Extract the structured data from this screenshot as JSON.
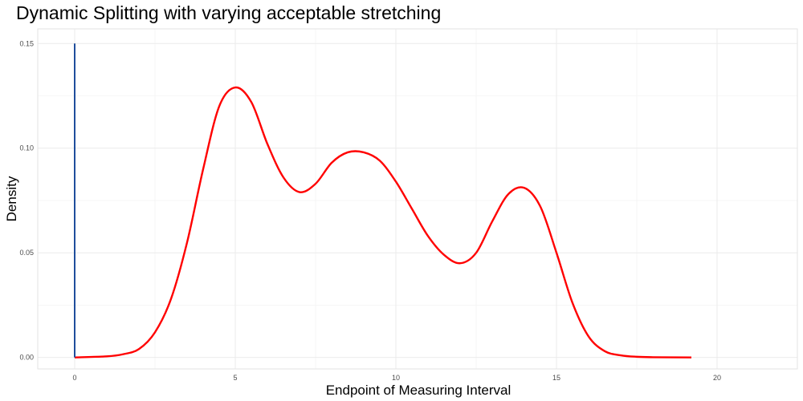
{
  "chart_data": {
    "type": "line",
    "title": "Dynamic Splitting with varying acceptable stretching",
    "xlabel": "Endpoint of Measuring Interval",
    "ylabel": "Density",
    "xlim": [
      -1.15,
      22.5
    ],
    "ylim": [
      -0.0055,
      0.157
    ],
    "x_ticks": [
      0,
      5,
      10,
      15,
      20
    ],
    "x_tick_labels": [
      "0",
      "5",
      "10",
      "15",
      "20"
    ],
    "y_ticks": [
      0.0,
      0.05,
      0.1,
      0.15
    ],
    "y_tick_labels": [
      "0.00",
      "0.05",
      "0.10",
      "0.15"
    ],
    "grid": true,
    "legend": "none",
    "series": [
      {
        "color": "#ff0000",
        "x": [
          0,
          1,
          1.5,
          2,
          2.5,
          3,
          3.5,
          4,
          4.5,
          5,
          5.5,
          6,
          6.5,
          7,
          7.5,
          8,
          8.5,
          9,
          9.5,
          10,
          10.5,
          11,
          11.5,
          12,
          12.5,
          13,
          13.5,
          14,
          14.5,
          15,
          15.5,
          16,
          16.5,
          17,
          17.5,
          18,
          19.2
        ],
        "y": [
          0.0,
          0.0005,
          0.0015,
          0.004,
          0.012,
          0.028,
          0.055,
          0.09,
          0.12,
          0.129,
          0.122,
          0.102,
          0.086,
          0.079,
          0.083,
          0.093,
          0.098,
          0.098,
          0.094,
          0.084,
          0.071,
          0.058,
          0.049,
          0.045,
          0.05,
          0.065,
          0.078,
          0.081,
          0.072,
          0.05,
          0.026,
          0.01,
          0.003,
          0.001,
          0.0003,
          0.0001,
          0.0
        ]
      },
      {
        "color": "#1f4e9c",
        "x": [
          0,
          0
        ],
        "y": [
          0.0,
          0.15
        ]
      }
    ]
  }
}
